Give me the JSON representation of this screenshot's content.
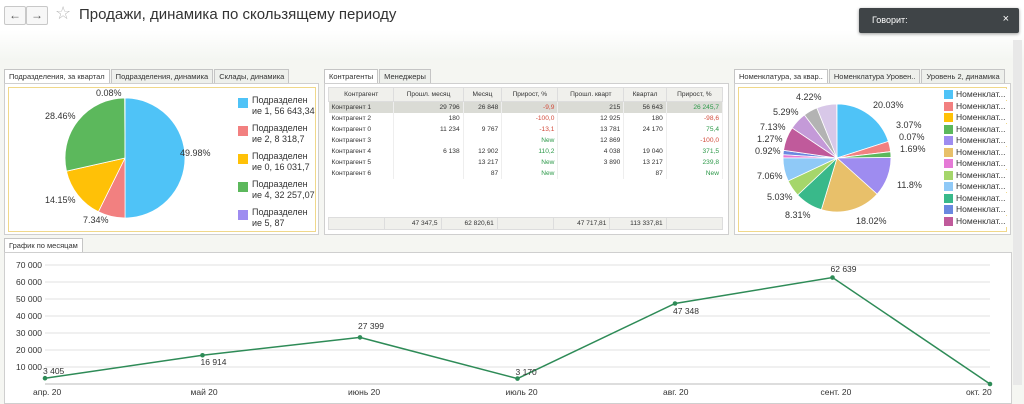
{
  "title": "Продажи, динамика по скользящему периоду",
  "nav": {
    "back": "←",
    "forward": "→"
  },
  "notification": {
    "text": "Говорит:",
    "close": "×"
  },
  "panel1": {
    "tabs": [
      "Подразделения, за квартал",
      "Подразделения, динамика",
      "Склады, динамика"
    ],
    "pie_labels": [
      "0.08%",
      "49.98%",
      "7.34%",
      "14.15%",
      "28.46%"
    ],
    "legend": [
      {
        "text": "Подразделен ие 1, 56 643,34",
        "color": "#4fc3f7"
      },
      {
        "text": "Подразделен ие 2, 8 318,7",
        "color": "#f28080"
      },
      {
        "text": "Подразделен ие 0, 16 031,7",
        "color": "#ffc107"
      },
      {
        "text": "Подразделен ие 4, 32 257,07",
        "color": "#5cb85c"
      },
      {
        "text": "Подразделен ие 5, 87",
        "color": "#9e8cf0"
      }
    ]
  },
  "panel2": {
    "tabs": [
      "Контрагенты",
      "Менеджеры"
    ],
    "columns": [
      "Контрагент",
      "Прошл. месяц",
      "Месяц",
      "Прирост, %",
      "Прошл. кварт",
      "Квартал",
      "Прирост, %"
    ],
    "rows": [
      [
        "Контрагент 1",
        "29 796",
        "26 848",
        "-9,9",
        "215",
        "56 643",
        "26 245,7"
      ],
      [
        "Контрагент 2",
        "180",
        "",
        "-100,0",
        "12 925",
        "180",
        "-98,6"
      ],
      [
        "Контрагент 0",
        "11 234",
        "9 767",
        "-13,1",
        "13 781",
        "24 170",
        "75,4"
      ],
      [
        "Контрагент 3",
        "",
        "",
        "New",
        "12 869",
        "",
        "-100,0"
      ],
      [
        "Контрагент 4",
        "6 138",
        "12 902",
        "110,2",
        "4 038",
        "19 040",
        "371,5"
      ],
      [
        "Контрагент 5",
        "",
        "13 217",
        "New",
        "3 890",
        "13 217",
        "239,8"
      ],
      [
        "Контрагент 6",
        "",
        "87",
        "New",
        "",
        "87",
        "New"
      ]
    ],
    "totals": [
      "",
      "47 347,5",
      "62 820,61",
      "",
      "47 717,81",
      "113 337,81",
      ""
    ]
  },
  "panel3": {
    "tabs": [
      "Номенклатура, за квар..",
      "Номенклатура Уровен..",
      "Уровень 2, динамика"
    ],
    "pie_labels": [
      "4.22%",
      "20.03%",
      "5.29%",
      "3.07%",
      "0.07%",
      "7.13%",
      "1.69%",
      "1.27%",
      "0.92%",
      "11.8%",
      "7.06%",
      "5.03%",
      "8.31%",
      "18.02%"
    ],
    "legend_text": "Номенклат...",
    "legend_colors": [
      "#4fc3f7",
      "#f28080",
      "#ffc107",
      "#5cb85c",
      "#9e8cf0",
      "#e8c06a",
      "#e57ad6",
      "#a5d66b",
      "#8fc9f7",
      "#39b98a",
      "#6a88e0",
      "#c05a9b"
    ]
  },
  "chart_panel": {
    "tab": "График по месяцам"
  },
  "chart_data": {
    "type": "line",
    "categories": [
      "апр. 20",
      "май 20",
      "июнь 20",
      "июль 20",
      "авг. 20",
      "сент. 20",
      "окт. 20"
    ],
    "values": [
      3405,
      16914,
      27399,
      3170,
      47348,
      62639,
      0
    ],
    "point_labels": [
      "3 405",
      "16 914",
      "27 399",
      "3 170",
      "47 348",
      "62 639",
      ""
    ],
    "yticks": [
      "70 000",
      "60 000",
      "50 000",
      "40 000",
      "30 000",
      "20 000",
      "10 000"
    ],
    "ylim": [
      0,
      70000
    ],
    "color": "#2e8b57",
    "grid": true
  }
}
